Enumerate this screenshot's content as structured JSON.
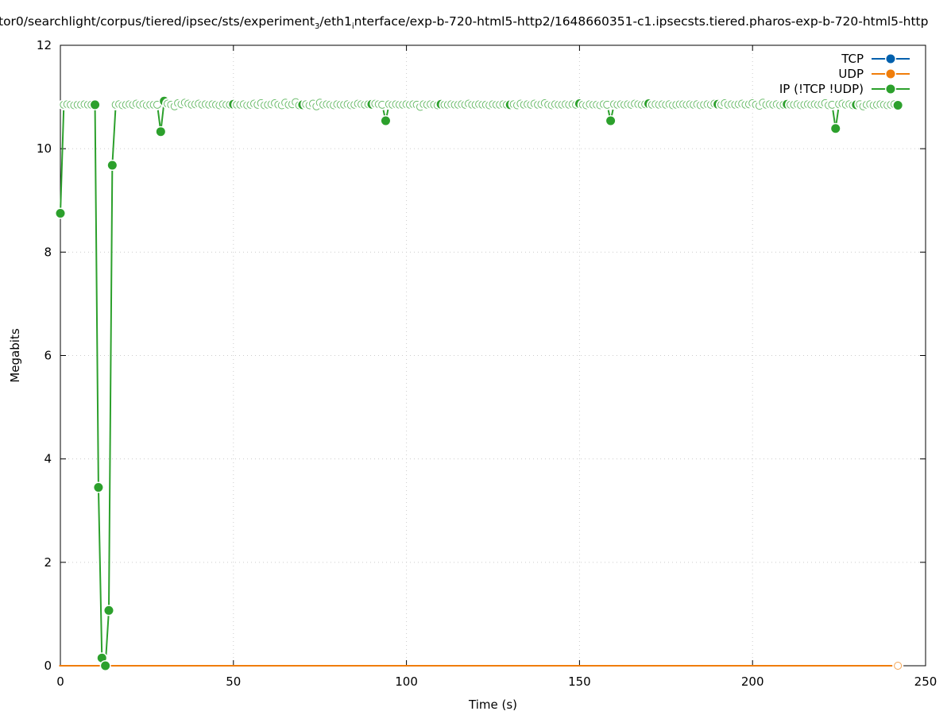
{
  "chart_data": {
    "type": "line",
    "title_parts": [
      {
        "text": "tor0/searchlight/corpus/tiered/ipsec/sts/experiment",
        "sub": false
      },
      {
        "text": "3",
        "sub": true
      },
      {
        "text": "/eth1",
        "sub": false
      },
      {
        "text": "i",
        "sub": true
      },
      {
        "text": "nterface/exp-b-720-html5-http2/1648660351-c1.ipsecsts.tiered.pharos-exp-b-720-html5-http",
        "sub": false
      }
    ],
    "xlabel": "Time (s)",
    "ylabel": "Megabits",
    "xlim": [
      0,
      250
    ],
    "ylim": [
      0,
      12
    ],
    "xticks": [
      "0",
      "50",
      "100",
      "150",
      "200",
      "250"
    ],
    "yticks": [
      "0",
      "2",
      "4",
      "6",
      "8",
      "10",
      "12"
    ],
    "grid": true,
    "legend_position": "top-right",
    "x_start": 0,
    "x_step": 1,
    "series": [
      {
        "name": "TCP",
        "color": "#0060ad",
        "values": "zero"
      },
      {
        "name": "UDP",
        "color": "#f07d0a",
        "values": "zero"
      },
      {
        "name": "IP (!TCP  !UDP)",
        "color": "#2ca02c",
        "values": [
          8.75,
          10.85,
          10.86,
          10.85,
          10.84,
          10.85,
          10.85,
          10.86,
          10.85,
          10.85,
          10.85,
          3.45,
          0.15,
          0,
          1.07,
          9.68,
          10.85,
          10.86,
          10.84,
          10.85,
          10.86,
          10.85,
          10.87,
          10.85,
          10.86,
          10.84,
          10.85,
          10.85,
          10.85,
          10.33,
          10.92,
          10.87,
          10.85,
          10.82,
          10.88,
          10.86,
          10.89,
          10.87,
          10.85,
          10.86,
          10.87,
          10.85,
          10.86,
          10.85,
          10.86,
          10.85,
          10.84,
          10.86,
          10.85,
          10.85,
          10.86,
          10.85,
          10.85,
          10.86,
          10.84,
          10.85,
          10.87,
          10.85,
          10.88,
          10.84,
          10.85,
          10.86,
          10.88,
          10.85,
          10.84,
          10.89,
          10.85,
          10.86,
          10.9,
          10.84,
          10.85,
          10.86,
          10.84,
          10.87,
          10.82,
          10.89,
          10.85,
          10.86,
          10.85,
          10.84,
          10.86,
          10.85,
          10.85,
          10.86,
          10.84,
          10.85,
          10.87,
          10.86,
          10.85,
          10.86,
          10.86,
          10.87,
          10.86,
          10.85,
          10.54,
          10.86,
          10.85,
          10.86,
          10.85,
          10.85,
          10.86,
          10.85,
          10.86,
          10.85,
          10.81,
          10.86,
          10.85,
          10.86,
          10.85,
          10.84,
          10.86,
          10.85,
          10.85,
          10.86,
          10.85,
          10.85,
          10.86,
          10.85,
          10.87,
          10.85,
          10.85,
          10.86,
          10.85,
          10.85,
          10.84,
          10.86,
          10.85,
          10.85,
          10.86,
          10.85,
          10.85,
          10.86,
          10.84,
          10.87,
          10.85,
          10.86,
          10.85,
          10.87,
          10.85,
          10.86,
          10.88,
          10.85,
          10.84,
          10.86,
          10.85,
          10.85,
          10.86,
          10.85,
          10.86,
          10.85,
          10.87,
          10.85,
          10.84,
          10.86,
          10.85,
          10.85,
          10.84,
          10.86,
          10.85,
          10.54,
          10.86,
          10.85,
          10.86,
          10.85,
          10.86,
          10.85,
          10.87,
          10.86,
          10.85,
          10.86,
          10.87,
          10.85,
          10.86,
          10.85,
          10.86,
          10.85,
          10.86,
          10.84,
          10.85,
          10.86,
          10.86,
          10.85,
          10.86,
          10.85,
          10.86,
          10.84,
          10.85,
          10.86,
          10.85,
          10.87,
          10.86,
          10.85,
          10.88,
          10.85,
          10.86,
          10.85,
          10.86,
          10.87,
          10.85,
          10.86,
          10.88,
          10.85,
          10.83,
          10.89,
          10.85,
          10.86,
          10.85,
          10.86,
          10.84,
          10.85,
          10.86,
          10.85,
          10.85,
          10.86,
          10.84,
          10.85,
          10.86,
          10.85,
          10.86,
          10.85,
          10.86,
          10.88,
          10.84,
          10.85,
          10.39,
          10.86,
          10.87,
          10.85,
          10.86,
          10.84,
          10.85,
          10.86,
          10.82,
          10.85,
          10.86,
          10.84,
          10.85,
          10.86,
          10.85,
          10.84,
          10.85,
          10.86,
          10.84
        ]
      }
    ]
  }
}
